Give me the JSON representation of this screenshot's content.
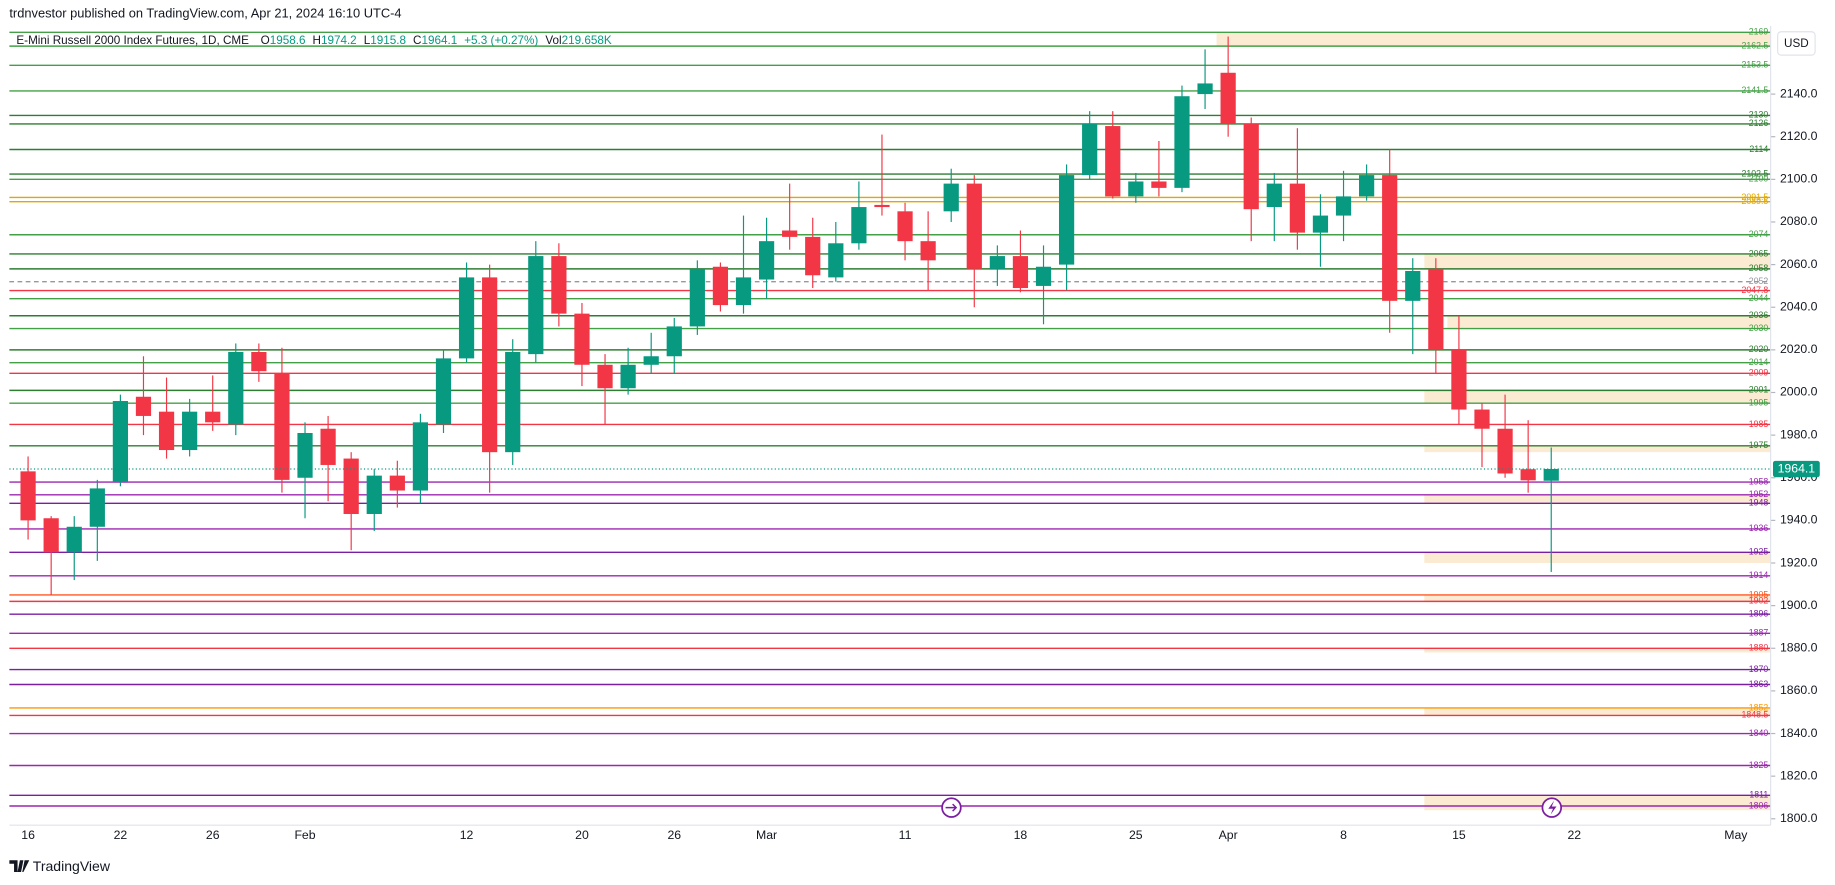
{
  "header": {
    "publisher": "trdnvestor published on TradingView.com, Apr 21, 2024 16:10 UTC-4",
    "footer": "TradingView"
  },
  "chart_data": {
    "type": "candlestick",
    "symbol": "E-Mini Russell 2000 Index Futures, 1D, CME",
    "fields": [
      {
        "key": "O",
        "value": 1958.6
      },
      {
        "key": "H",
        "value": 1974.2
      },
      {
        "key": "L",
        "value": 1915.8
      },
      {
        "key": "C",
        "value": 1964.1
      }
    ],
    "change": "+5.3 (+0.27%)",
    "volume": {
      "key": "Vol",
      "value": "219.658K"
    },
    "currency": "USD",
    "up_color": "#089981",
    "down_color": "#f23645",
    "categories": [
      "16",
      null,
      null,
      null,
      "22",
      null,
      null,
      null,
      "26",
      null,
      null,
      null,
      "Feb",
      null,
      null,
      null,
      null,
      null,
      null,
      "12",
      null,
      null,
      null,
      null,
      "20",
      null,
      null,
      null,
      "26",
      null,
      null,
      null,
      "Mar",
      null,
      null,
      null,
      null,
      null,
      "11",
      null,
      null,
      null,
      null,
      "18",
      null,
      null,
      null,
      null,
      "25",
      null,
      null,
      null,
      "Apr",
      null,
      null,
      null,
      null,
      "8",
      null,
      null,
      null,
      null,
      "15",
      null,
      null,
      null,
      null,
      "22",
      null,
      null,
      null,
      null,
      null,
      null,
      "May"
    ],
    "open": [
      1963,
      1941,
      1925,
      1937,
      1958,
      1998,
      1991,
      1973,
      1991,
      1985,
      2019,
      2009,
      1960,
      1983,
      1969,
      1943,
      1961,
      1954,
      1985,
      2016,
      2054,
      1972,
      2018,
      2064,
      2037,
      2013,
      2002,
      2013,
      2017,
      2031,
      2059,
      2041,
      2053,
      2076,
      2073,
      2054,
      2070,
      2088,
      2085,
      2071,
      2085,
      2098,
      2058,
      2064,
      2050,
      2060,
      2102,
      2125,
      2092,
      2099,
      2096,
      2140,
      2150,
      2126,
      2087,
      2098,
      2075,
      2083,
      2092,
      2102,
      2043,
      2058,
      2020,
      1992,
      1983,
      1964,
      1958.6,
      null,
      null,
      null,
      null,
      null,
      null,
      null,
      null
    ],
    "high": [
      1970,
      1942,
      1942,
      1959,
      1999,
      2017,
      2007,
      1997,
      2008,
      2023,
      2023,
      2021,
      1986,
      1989,
      1972,
      1964,
      1968,
      1990,
      2020,
      2061,
      2060,
      2025,
      2071,
      2070,
      2042,
      2018,
      2021,
      2028,
      2035,
      2062,
      2061,
      2083,
      2082,
      2098,
      2082,
      2080,
      2099,
      2121,
      2089,
      2085,
      2105,
      2102,
      2069,
      2076,
      2069,
      2107,
      2132,
      2132,
      2103,
      2118,
      2144,
      2161,
      2167,
      2129,
      2103,
      2124,
      2093,
      2104,
      2107,
      2114,
      2063,
      2063,
      2036,
      1995,
      1999,
      1987,
      1974.2,
      null,
      null,
      null,
      null,
      null,
      null,
      null,
      null
    ],
    "low": [
      1931,
      1905,
      1912,
      1921,
      1956,
      1980,
      1969,
      1970,
      1982,
      1980,
      2005,
      1953,
      1941,
      1949,
      1926,
      1935,
      1946,
      1948,
      1981,
      2014,
      1953,
      1966,
      2014,
      2031,
      2003,
      1985,
      1999,
      2009,
      2009,
      2027,
      2038,
      2037,
      2044,
      2067,
      2049,
      2052,
      2067,
      2083,
      2062,
      2048,
      2080,
      2040,
      2050,
      2047,
      2032,
      2048,
      2100,
      2091,
      2089,
      2092,
      2094,
      2133,
      2120,
      2071,
      2071,
      2067,
      2059,
      2071,
      2090,
      2028,
      2018,
      2009,
      1985,
      1965,
      1960,
      1953,
      1915.8,
      null,
      null,
      null,
      null,
      null,
      null,
      null,
      null
    ],
    "close": [
      1940,
      1925,
      1937,
      1955,
      1996,
      1989,
      1973,
      1991,
      1986,
      2019,
      2010,
      1959,
      1981,
      1966,
      1943,
      1961,
      1954,
      1986,
      2016,
      2054,
      1972,
      2019,
      2064,
      2037,
      2013,
      2002,
      2013,
      2017,
      2031,
      2058,
      2041,
      2054,
      2071,
      2073,
      2055,
      2070,
      2087,
      2087,
      2071,
      2062,
      2098,
      2058,
      2064,
      2049,
      2059,
      2102,
      2126,
      2092,
      2099,
      2096,
      2139,
      2145,
      2126,
      2086,
      2098,
      2075,
      2083,
      2092,
      2102,
      2043,
      2057,
      2020,
      1992,
      1983,
      1962,
      1958.8,
      1964.1,
      null,
      null,
      null,
      null,
      null,
      null,
      null,
      null
    ],
    "ylim": [
      1797,
      2172
    ],
    "yticks": [
      {
        "value": 1800,
        "label": "1800.0"
      },
      {
        "value": 1820,
        "label": "1820.0"
      },
      {
        "value": 1840,
        "label": "1840.0"
      },
      {
        "value": 1860,
        "label": "1860.0"
      },
      {
        "value": 1880,
        "label": "1880.0"
      },
      {
        "value": 1900,
        "label": "1900.0"
      },
      {
        "value": 1920,
        "label": "1920.0"
      },
      {
        "value": 1940,
        "label": "1940.0"
      },
      {
        "value": 1960,
        "label": "1960.0"
      },
      {
        "value": 1980,
        "label": "1980.0"
      },
      {
        "value": 2000,
        "label": "2000.0"
      },
      {
        "value": 2020,
        "label": "2020.0"
      },
      {
        "value": 2040,
        "label": "2040.0"
      },
      {
        "value": 2060,
        "label": "2060.0"
      },
      {
        "value": 2080,
        "label": "2080.0"
      },
      {
        "value": 2100,
        "label": "2100.0"
      },
      {
        "value": 2120,
        "label": "2120.0"
      },
      {
        "value": 2140,
        "label": "2140.0"
      }
    ],
    "grid": false,
    "levels": [
      {
        "value": 2169,
        "color": "#43a047"
      },
      {
        "value": 2162.5,
        "color": "#43a047"
      },
      {
        "value": 2153.5,
        "color": "#43a047"
      },
      {
        "value": 2141.5,
        "color": "#43a047"
      },
      {
        "value": 2130,
        "color": "#2e7d32"
      },
      {
        "value": 2126,
        "color": "#2e7d32"
      },
      {
        "value": 2114,
        "color": "#2e7d32"
      },
      {
        "value": 2102.5,
        "color": "#2e7d32"
      },
      {
        "value": 2100,
        "color": "#43a047"
      },
      {
        "value": 2091.5,
        "color": "#e0a800"
      },
      {
        "value": 2089.5,
        "color": "#e0a800"
      },
      {
        "value": 2074,
        "color": "#43a047"
      },
      {
        "value": 2065,
        "color": "#2e7d32"
      },
      {
        "value": 2058,
        "color": "#2e7d32"
      },
      {
        "value": 2052,
        "color": "#9598a1",
        "style": "dashed"
      },
      {
        "value": 2047.8,
        "color": "#f23645"
      },
      {
        "value": 2044,
        "color": "#43a047"
      },
      {
        "value": 2036,
        "color": "#2e7d32"
      },
      {
        "value": 2030,
        "color": "#43a047"
      },
      {
        "value": 2020,
        "color": "#2e7d32"
      },
      {
        "value": 2014,
        "color": "#43a047"
      },
      {
        "value": 2009,
        "color": "#f23645"
      },
      {
        "value": 2001,
        "color": "#2e7d32"
      },
      {
        "value": 1995,
        "color": "#43a047"
      },
      {
        "value": 1985,
        "color": "#f23645"
      },
      {
        "value": 1975,
        "color": "#2e7d32"
      },
      {
        "value": 1958,
        "color": "#9c27b0"
      },
      {
        "value": 1952,
        "color": "#9c27b0"
      },
      {
        "value": 1948,
        "color": "#7b1fa2"
      },
      {
        "value": 1936,
        "color": "#9c27b0"
      },
      {
        "value": 1925,
        "color": "#7b1fa2"
      },
      {
        "value": 1914,
        "color": "#9c27b0"
      },
      {
        "value": 1905,
        "color": "#ff5722"
      },
      {
        "value": 1902,
        "color": "#f23645"
      },
      {
        "value": 1896,
        "color": "#7b1fa2"
      },
      {
        "value": 1887,
        "color": "#9c27b0"
      },
      {
        "value": 1880,
        "color": "#f23645"
      },
      {
        "value": 1870,
        "color": "#7b1fa2"
      },
      {
        "value": 1863,
        "color": "#7b1fa2"
      },
      {
        "value": 1852,
        "color": "#ff9800"
      },
      {
        "value": 1848.5,
        "color": "#f23645"
      },
      {
        "value": 1840,
        "color": "#9c27b0"
      },
      {
        "value": 1825,
        "color": "#9c27b0"
      },
      {
        "value": 1811,
        "color": "#7b1fa2"
      },
      {
        "value": 1806,
        "color": "#9c27b0"
      }
    ],
    "zones": [
      {
        "low": 2162.5,
        "high": 2169,
        "from": 52
      },
      {
        "low": 2058,
        "high": 2065,
        "from": 61
      },
      {
        "low": 2030,
        "high": 2036,
        "from": 62
      },
      {
        "low": 1995,
        "high": 2001,
        "from": 61
      },
      {
        "low": 1972,
        "high": 1975,
        "from": 61
      },
      {
        "low": 1948,
        "high": 1952,
        "from": 61
      },
      {
        "low": 1920,
        "high": 1925,
        "from": 61
      },
      {
        "low": 1902,
        "high": 1905,
        "from": 61
      },
      {
        "low": 1878,
        "high": 1880,
        "from": 61
      },
      {
        "low": 1848.5,
        "high": 1852,
        "from": 61
      },
      {
        "low": 1804,
        "high": 1811,
        "from": 61
      }
    ]
  }
}
